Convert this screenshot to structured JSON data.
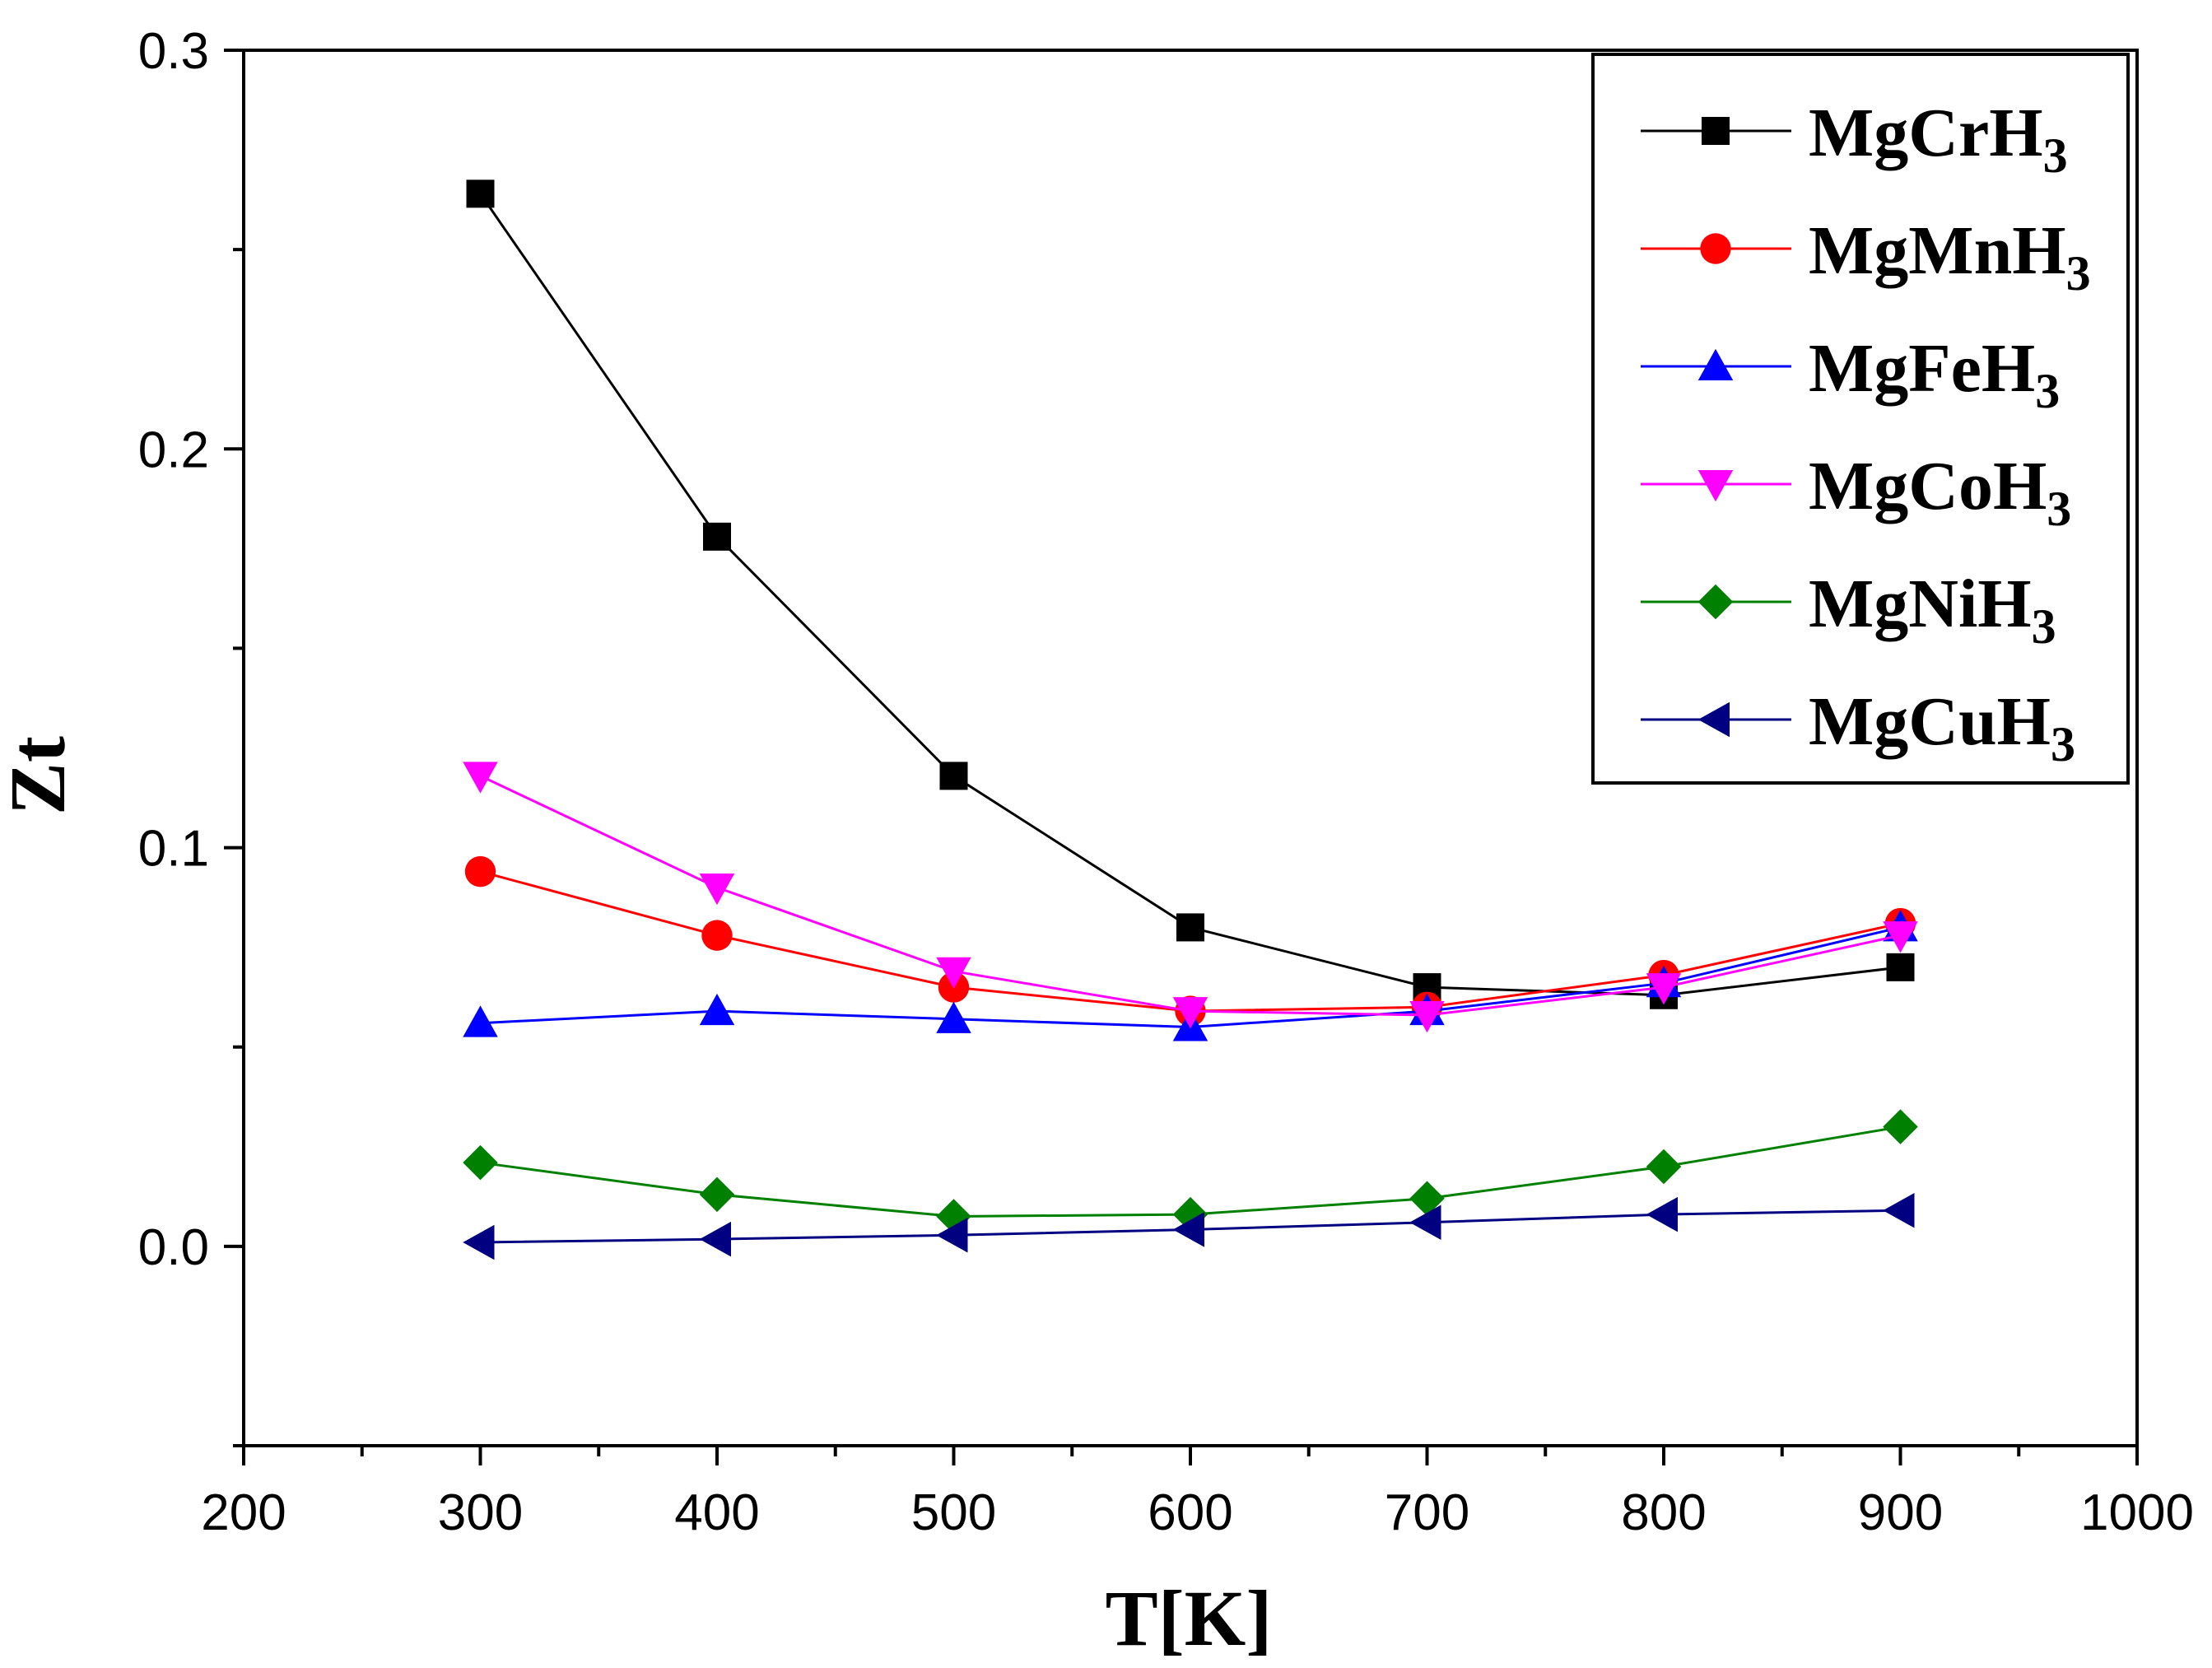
{
  "chart_data": {
    "type": "line",
    "xlabel": "T[K]",
    "ylabel": "Zt",
    "xlim": [
      200,
      1000
    ],
    "ylim": [
      -0.05,
      0.3
    ],
    "xticks": [
      "200",
      "300",
      "400",
      "500",
      "600",
      "700",
      "800",
      "900",
      "1000"
    ],
    "yticks": [
      "0.0",
      "0.1",
      "0.2",
      "0.3"
    ],
    "legend_position": "top-right",
    "grid": false,
    "x": [
      300,
      400,
      500,
      600,
      700,
      800,
      900
    ],
    "series": [
      {
        "name": "MgCrH",
        "subscript": "3",
        "color": "#000000",
        "marker": "square",
        "values": [
          0.264,
          0.178,
          0.118,
          0.08,
          0.065,
          0.063,
          0.07
        ]
      },
      {
        "name": "MgMnH",
        "subscript": "3",
        "color": "#ff0000",
        "marker": "circle",
        "values": [
          0.094,
          0.078,
          0.065,
          0.059,
          0.06,
          0.068,
          0.081
        ]
      },
      {
        "name": "MgFeH",
        "subscript": "3",
        "color": "#0000ff",
        "marker": "triangle-up",
        "values": [
          0.056,
          0.059,
          0.057,
          0.055,
          0.059,
          0.066,
          0.08
        ]
      },
      {
        "name": "MgCoH",
        "subscript": "3",
        "color": "#ff00ff",
        "marker": "triangle-down",
        "values": [
          0.118,
          0.09,
          0.069,
          0.059,
          0.058,
          0.065,
          0.078
        ]
      },
      {
        "name": "MgNiH",
        "subscript": "3",
        "color": "#008000",
        "marker": "diamond",
        "values": [
          0.021,
          0.013,
          0.0075,
          0.008,
          0.012,
          0.02,
          0.03
        ]
      },
      {
        "name": "MgCuH",
        "subscript": "3",
        "color": "#000080",
        "marker": "triangle-left",
        "values": [
          0.001,
          0.0018,
          0.0028,
          0.0042,
          0.006,
          0.008,
          0.009
        ]
      }
    ]
  }
}
